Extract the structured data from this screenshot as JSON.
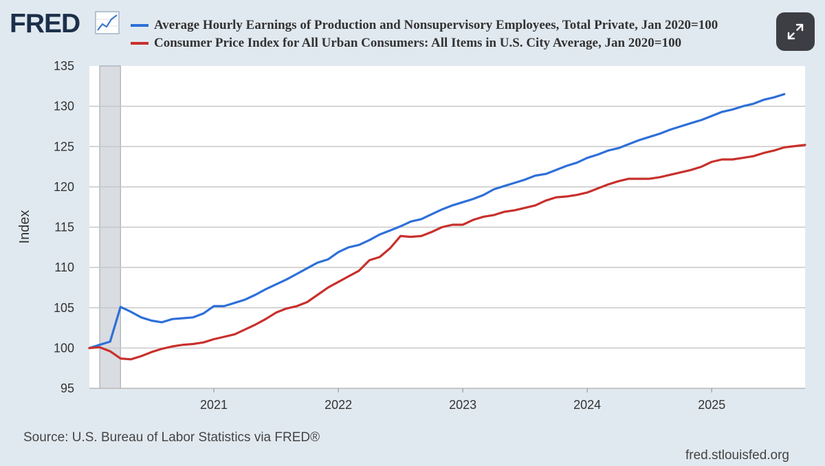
{
  "header": {
    "logo_text": "FRED",
    "logo_icon": "line-chart-icon",
    "expand_icon": "expand-icon"
  },
  "footer": {
    "source": "Source: U.S. Bureau of Labor Statistics via FRED®",
    "site": "fred.stlouisfed.org"
  },
  "chart_data": {
    "type": "line",
    "title": "",
    "ylabel": "Index",
    "xlabel": "",
    "ylim": [
      95,
      135
    ],
    "y_ticks": [
      "95",
      "100",
      "105",
      "110",
      "115",
      "120",
      "125",
      "130",
      "135"
    ],
    "x_range": [
      2020.0,
      2025.75
    ],
    "x_ticks": [
      {
        "label": "2021",
        "value": 2021
      },
      {
        "label": "2022",
        "value": 2022
      },
      {
        "label": "2023",
        "value": 2023
      },
      {
        "label": "2024",
        "value": 2024
      },
      {
        "label": "2025",
        "value": 2025
      }
    ],
    "recession": {
      "start": 2020.083,
      "end": 2020.25
    },
    "grid": true,
    "legend_position": "top",
    "series": [
      {
        "name": "Average Hourly Earnings of Production and Nonsupervisory Employees, Total Private, Jan 2020=100",
        "color": "#2e6fd8",
        "points": [
          [
            2020.0,
            100.0
          ],
          [
            2020.083,
            100.4
          ],
          [
            2020.167,
            100.8
          ],
          [
            2020.25,
            105.1
          ],
          [
            2020.333,
            104.5
          ],
          [
            2020.417,
            103.8
          ],
          [
            2020.5,
            103.4
          ],
          [
            2020.583,
            103.2
          ],
          [
            2020.667,
            103.6
          ],
          [
            2020.75,
            103.7
          ],
          [
            2020.833,
            103.8
          ],
          [
            2020.917,
            104.3
          ],
          [
            2021.0,
            105.2
          ],
          [
            2021.083,
            105.2
          ],
          [
            2021.167,
            105.6
          ],
          [
            2021.25,
            106.0
          ],
          [
            2021.333,
            106.6
          ],
          [
            2021.417,
            107.3
          ],
          [
            2021.5,
            107.9
          ],
          [
            2021.583,
            108.5
          ],
          [
            2021.667,
            109.2
          ],
          [
            2021.75,
            109.9
          ],
          [
            2021.833,
            110.6
          ],
          [
            2021.917,
            111.0
          ],
          [
            2022.0,
            111.9
          ],
          [
            2022.083,
            112.5
          ],
          [
            2022.167,
            112.8
          ],
          [
            2022.25,
            113.4
          ],
          [
            2022.333,
            114.1
          ],
          [
            2022.417,
            114.6
          ],
          [
            2022.5,
            115.1
          ],
          [
            2022.583,
            115.7
          ],
          [
            2022.667,
            116.0
          ],
          [
            2022.75,
            116.6
          ],
          [
            2022.833,
            117.2
          ],
          [
            2022.917,
            117.7
          ],
          [
            2023.0,
            118.1
          ],
          [
            2023.083,
            118.5
          ],
          [
            2023.167,
            119.0
          ],
          [
            2023.25,
            119.7
          ],
          [
            2023.333,
            120.1
          ],
          [
            2023.417,
            120.5
          ],
          [
            2023.5,
            120.9
          ],
          [
            2023.583,
            121.4
          ],
          [
            2023.667,
            121.6
          ],
          [
            2023.75,
            122.1
          ],
          [
            2023.833,
            122.6
          ],
          [
            2023.917,
            123.0
          ],
          [
            2024.0,
            123.6
          ],
          [
            2024.083,
            124.0
          ],
          [
            2024.167,
            124.5
          ],
          [
            2024.25,
            124.8
          ],
          [
            2024.333,
            125.3
          ],
          [
            2024.417,
            125.8
          ],
          [
            2024.5,
            126.2
          ],
          [
            2024.583,
            126.6
          ],
          [
            2024.667,
            127.1
          ],
          [
            2024.75,
            127.5
          ],
          [
            2024.833,
            127.9
          ],
          [
            2024.917,
            128.3
          ],
          [
            2025.0,
            128.8
          ],
          [
            2025.083,
            129.3
          ],
          [
            2025.167,
            129.6
          ],
          [
            2025.25,
            130.0
          ],
          [
            2025.333,
            130.3
          ],
          [
            2025.417,
            130.8
          ],
          [
            2025.5,
            131.1
          ],
          [
            2025.583,
            131.5
          ]
        ]
      },
      {
        "name": "Consumer Price Index for All Urban Consumers: All Items in U.S. City Average, Jan 2020=100",
        "color": "#c8302c",
        "points": [
          [
            2020.0,
            100.0
          ],
          [
            2020.083,
            100.1
          ],
          [
            2020.167,
            99.6
          ],
          [
            2020.25,
            98.7
          ],
          [
            2020.333,
            98.6
          ],
          [
            2020.417,
            99.0
          ],
          [
            2020.5,
            99.5
          ],
          [
            2020.583,
            99.9
          ],
          [
            2020.667,
            100.2
          ],
          [
            2020.75,
            100.4
          ],
          [
            2020.833,
            100.5
          ],
          [
            2020.917,
            100.7
          ],
          [
            2021.0,
            101.1
          ],
          [
            2021.083,
            101.4
          ],
          [
            2021.167,
            101.7
          ],
          [
            2021.25,
            102.3
          ],
          [
            2021.333,
            102.9
          ],
          [
            2021.417,
            103.6
          ],
          [
            2021.5,
            104.4
          ],
          [
            2021.583,
            104.9
          ],
          [
            2021.667,
            105.2
          ],
          [
            2021.75,
            105.7
          ],
          [
            2021.833,
            106.6
          ],
          [
            2021.917,
            107.5
          ],
          [
            2022.0,
            108.2
          ],
          [
            2022.083,
            108.9
          ],
          [
            2022.167,
            109.6
          ],
          [
            2022.25,
            110.9
          ],
          [
            2022.333,
            111.3
          ],
          [
            2022.417,
            112.4
          ],
          [
            2022.5,
            113.9
          ],
          [
            2022.583,
            113.8
          ],
          [
            2022.667,
            113.9
          ],
          [
            2022.75,
            114.4
          ],
          [
            2022.833,
            115.0
          ],
          [
            2022.917,
            115.3
          ],
          [
            2023.0,
            115.3
          ],
          [
            2023.083,
            115.9
          ],
          [
            2023.167,
            116.3
          ],
          [
            2023.25,
            116.5
          ],
          [
            2023.333,
            116.9
          ],
          [
            2023.417,
            117.1
          ],
          [
            2023.5,
            117.4
          ],
          [
            2023.583,
            117.7
          ],
          [
            2023.667,
            118.3
          ],
          [
            2023.75,
            118.7
          ],
          [
            2023.833,
            118.8
          ],
          [
            2023.917,
            119.0
          ],
          [
            2024.0,
            119.3
          ],
          [
            2024.083,
            119.8
          ],
          [
            2024.167,
            120.3
          ],
          [
            2024.25,
            120.7
          ],
          [
            2024.333,
            121.0
          ],
          [
            2024.417,
            121.0
          ],
          [
            2024.5,
            121.0
          ],
          [
            2024.583,
            121.2
          ],
          [
            2024.667,
            121.5
          ],
          [
            2024.75,
            121.8
          ],
          [
            2024.833,
            122.1
          ],
          [
            2024.917,
            122.5
          ],
          [
            2025.0,
            123.1
          ],
          [
            2025.083,
            123.4
          ],
          [
            2025.167,
            123.4
          ],
          [
            2025.25,
            123.6
          ],
          [
            2025.333,
            123.8
          ],
          [
            2025.417,
            124.2
          ],
          [
            2025.5,
            124.5
          ],
          [
            2025.583,
            124.9
          ],
          [
            2025.75,
            125.2
          ]
        ]
      }
    ]
  }
}
